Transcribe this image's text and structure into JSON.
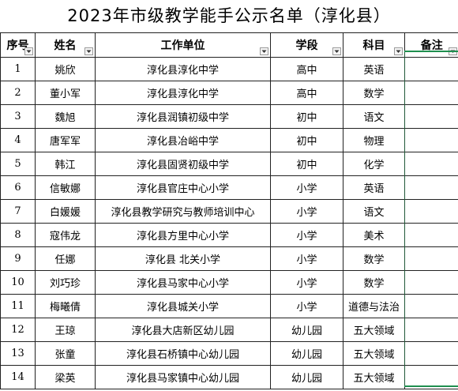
{
  "title": "2023年市级教学能手公示名单（淳化县）",
  "columns": {
    "no": "序号",
    "name": "姓名",
    "org": "工作单位",
    "stage": "学段",
    "subject": "科目",
    "remark": "备注"
  },
  "rows": [
    {
      "no": "1",
      "name": "姚欣",
      "org": "淳化县淳化中学",
      "stage": "高中",
      "subject": "英语",
      "remark": ""
    },
    {
      "no": "2",
      "name": "董小军",
      "org": "淳化县淳化中学",
      "stage": "高中",
      "subject": "数学",
      "remark": ""
    },
    {
      "no": "3",
      "name": "魏旭",
      "org": "淳化县润镇初级中学",
      "stage": "初中",
      "subject": "语文",
      "remark": ""
    },
    {
      "no": "4",
      "name": "唐军军",
      "org": "淳化县冶峪中学",
      "stage": "初中",
      "subject": "物理",
      "remark": ""
    },
    {
      "no": "5",
      "name": "韩江",
      "org": "淳化县固贤初级中学",
      "stage": "初中",
      "subject": "化学",
      "remark": ""
    },
    {
      "no": "6",
      "name": "信敏娜",
      "org": "淳化县官庄中心小学",
      "stage": "小学",
      "subject": "英语",
      "remark": ""
    },
    {
      "no": "7",
      "name": "白媛媛",
      "org": "淳化县教学研究与教师培训中心",
      "stage": "小学",
      "subject": "语文",
      "remark": ""
    },
    {
      "no": "8",
      "name": "寇伟龙",
      "org": "淳化县方里中心小学",
      "stage": "小学",
      "subject": "美术",
      "remark": ""
    },
    {
      "no": "9",
      "name": "任娜",
      "org": "淳化县 北关小学",
      "stage": "小学",
      "subject": "数学",
      "remark": ""
    },
    {
      "no": "10",
      "name": "刘巧珍",
      "org": "淳化县马家中心小学",
      "stage": "小学",
      "subject": "数学",
      "remark": ""
    },
    {
      "no": "11",
      "name": "梅曦倩",
      "org": "淳化县城关小学",
      "stage": "小学",
      "subject": "道德与法治",
      "remark": ""
    },
    {
      "no": "12",
      "name": "王琼",
      "org": "淳化县大店新区幼儿园",
      "stage": "幼儿园",
      "subject": "五大领域",
      "remark": ""
    },
    {
      "no": "13",
      "name": "张童",
      "org": "淳化县石桥镇中心幼儿园",
      "stage": "幼儿园",
      "subject": "五大领域",
      "remark": ""
    },
    {
      "no": "14",
      "name": "梁英",
      "org": "淳化县马家镇中心幼儿园",
      "stage": "幼儿园",
      "subject": "五大领域",
      "remark": ""
    }
  ],
  "icons": {
    "filter": "filter-dropdown-icon"
  },
  "colors": {
    "selection": "#1f8f4f"
  }
}
